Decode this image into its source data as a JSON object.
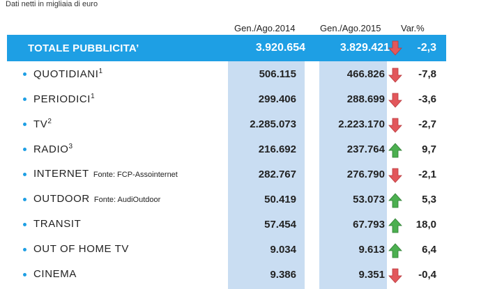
{
  "subtitle": "Dati netti in migliaia di euro",
  "headers": {
    "col1": "Gen./Ago.2014",
    "col2": "Gen./Ago.2015",
    "var": "Var.%"
  },
  "total": {
    "label": "TOTALE PUBBLICITA’",
    "v2014": "3.920.654",
    "v2015": "3.829.421",
    "trend": "down",
    "var": "-2,3"
  },
  "colors": {
    "accent": "#1e9fe4",
    "column": "#c9ddf2",
    "up": "#4caf50",
    "down": "#e2575b"
  },
  "rows": [
    {
      "label": "QUOTIDIANI",
      "sup": "1",
      "source": "",
      "v2014": "506.115",
      "v2015": "466.826",
      "trend": "down",
      "var": "-7,8"
    },
    {
      "label": "PERIODICI",
      "sup": "1",
      "source": "",
      "v2014": "299.406",
      "v2015": "288.699",
      "trend": "down",
      "var": "-3,6"
    },
    {
      "label": "TV",
      "sup": "2",
      "source": "",
      "v2014": "2.285.073",
      "v2015": "2.223.170",
      "trend": "down",
      "var": "-2,7"
    },
    {
      "label": "RADIO",
      "sup": "3",
      "source": "",
      "v2014": "216.692",
      "v2015": "237.764",
      "trend": "up",
      "var": "9,7"
    },
    {
      "label": "INTERNET",
      "sup": "",
      "source": "Fonte: FCP-Assointernet",
      "v2014": "282.767",
      "v2015": "276.790",
      "trend": "down",
      "var": "-2,1"
    },
    {
      "label": "OUTDOOR",
      "sup": "",
      "source": "Fonte: AudiOutdoor",
      "v2014": "50.419",
      "v2015": "53.073",
      "trend": "up",
      "var": "5,3"
    },
    {
      "label": "TRANSIT",
      "sup": "",
      "source": "",
      "v2014": "57.454",
      "v2015": "67.793",
      "trend": "up",
      "var": "18,0"
    },
    {
      "label": "OUT OF HOME TV",
      "sup": "",
      "source": "",
      "v2014": "9.034",
      "v2015": "9.613",
      "trend": "up",
      "var": "6,4"
    },
    {
      "label": "CINEMA",
      "sup": "",
      "source": "",
      "v2014": "9.386",
      "v2015": "9.351",
      "trend": "down",
      "var": "-0,4"
    }
  ]
}
